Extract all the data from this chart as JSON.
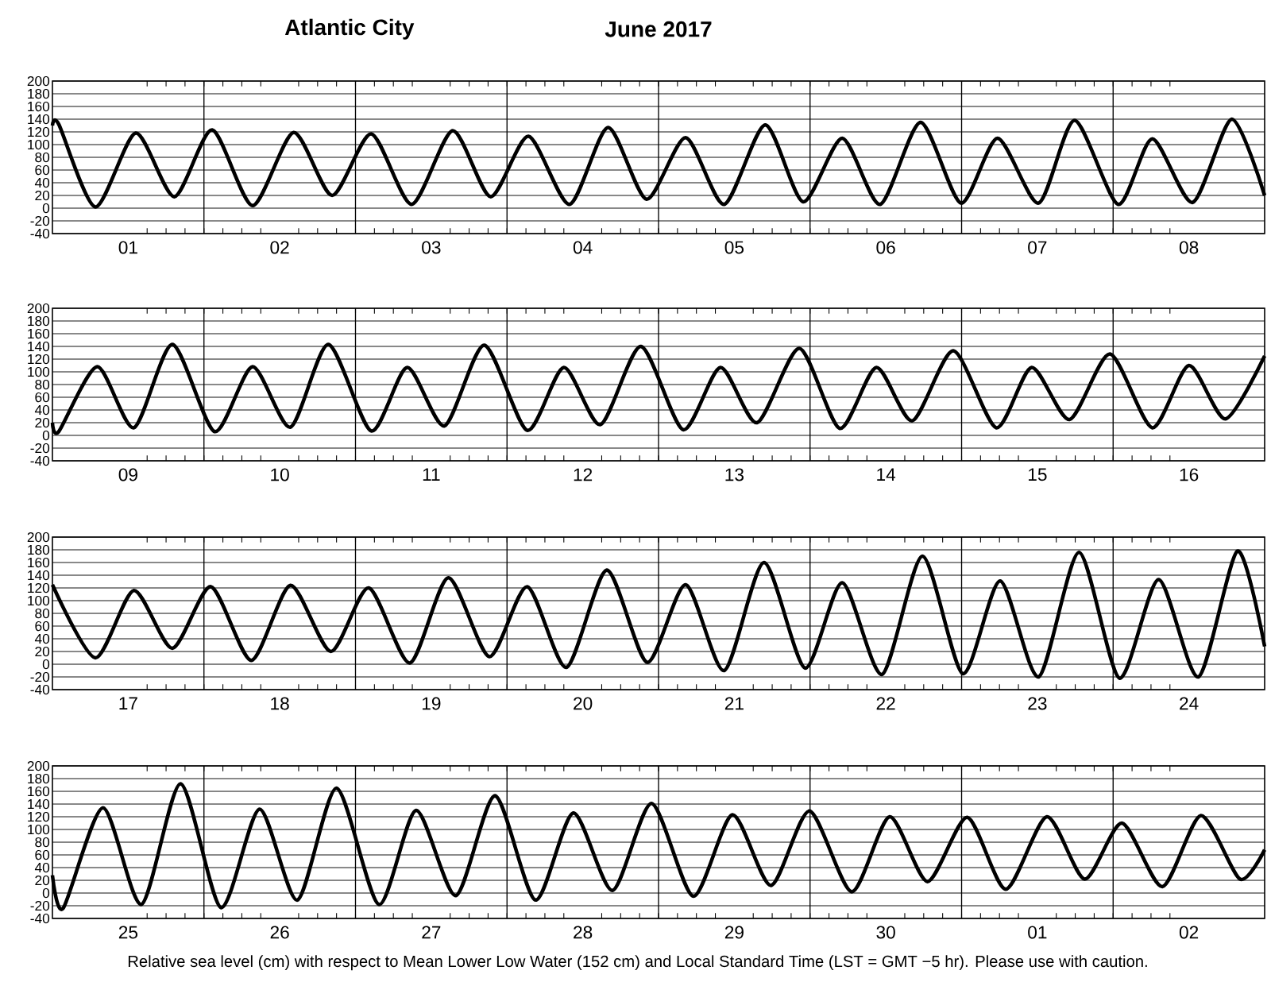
{
  "chart_data": [
    {
      "type": "line",
      "title": "Atlantic City",
      "subtitle": "June  2017",
      "xlim": [
        "2017-06-01T00:00",
        "2017-06-09T00:00"
      ],
      "ylim": [
        -40,
        200
      ],
      "xticks": [
        {
          "value": "2017-06-01T12:00",
          "label": "01"
        },
        {
          "value": "2017-06-02T12:00",
          "label": "02"
        },
        {
          "value": "2017-06-03T12:00",
          "label": "03"
        },
        {
          "value": "2017-06-04T12:00",
          "label": "04"
        },
        {
          "value": "2017-06-05T12:00",
          "label": "05"
        },
        {
          "value": "2017-06-06T12:00",
          "label": "06"
        },
        {
          "value": "2017-06-07T12:00",
          "label": "07"
        },
        {
          "value": "2017-06-08T12:00",
          "label": "08"
        }
      ],
      "yticks": [
        -40,
        -20,
        0,
        20,
        40,
        60,
        80,
        100,
        120,
        140,
        160,
        180,
        200
      ],
      "grid": "y",
      "ref_lines": [
        {
          "axis": "x",
          "value": "2017-06-02T00:00"
        },
        {
          "axis": "x",
          "value": "2017-06-03T00:00"
        },
        {
          "axis": "x",
          "value": "2017-06-04T00:00"
        },
        {
          "axis": "x",
          "value": "2017-06-05T00:00"
        },
        {
          "axis": "x",
          "value": "2017-06-06T00:00"
        },
        {
          "axis": "x",
          "value": "2017-06-07T00:00"
        },
        {
          "axis": "x",
          "value": "2017-06-08T00:00"
        }
      ],
      "series": [
        {
          "color": "#000000",
          "x": [
            "2017-06-01T00:00",
            "2017-06-01T01:00",
            "2017-06-01T06:48",
            "2017-06-01T13:12",
            "2017-06-01T19:18",
            "2017-06-02T01:18",
            "2017-06-02T07:42",
            "2017-06-02T14:12",
            "2017-06-02T20:18",
            "2017-06-03T02:30",
            "2017-06-03T08:54",
            "2017-06-03T15:24",
            "2017-06-03T21:24",
            "2017-06-04T03:24",
            "2017-06-04T09:54",
            "2017-06-04T16:00",
            "2017-06-04T22:06",
            "2017-06-05T04:18",
            "2017-06-05T10:24",
            "2017-06-05T16:54",
            "2017-06-05T22:54",
            "2017-06-06T05:06",
            "2017-06-06T11:06",
            "2017-06-06T17:30",
            "2017-06-06T23:54",
            "2017-06-07T05:42",
            "2017-06-07T12:12",
            "2017-06-07T17:54",
            "2017-06-08T00:48",
            "2017-06-08T06:12",
            "2017-06-08T12:36",
            "2017-06-08T18:48",
            "2017-06-09T00:00"
          ],
          "values": [
            130,
            132,
            2,
            118,
            18,
            123,
            4,
            119,
            20,
            117,
            6,
            122,
            18,
            113,
            6,
            127,
            14,
            111,
            6,
            131,
            10,
            110,
            6,
            135,
            8,
            110,
            8,
            138,
            6,
            109,
            9,
            140,
            20
          ]
        }
      ]
    },
    {
      "type": "line",
      "xlim": [
        "2017-06-09T00:00",
        "2017-06-17T00:00"
      ],
      "ylim": [
        -40,
        200
      ],
      "xticks": [
        {
          "value": "2017-06-09T12:00",
          "label": "09"
        },
        {
          "value": "2017-06-10T12:00",
          "label": "10"
        },
        {
          "value": "2017-06-11T12:00",
          "label": "11"
        },
        {
          "value": "2017-06-12T12:00",
          "label": "12"
        },
        {
          "value": "2017-06-13T12:00",
          "label": "13"
        },
        {
          "value": "2017-06-14T12:00",
          "label": "14"
        },
        {
          "value": "2017-06-15T12:00",
          "label": "15"
        },
        {
          "value": "2017-06-16T12:00",
          "label": "16"
        }
      ],
      "yticks": [
        -40,
        -20,
        0,
        20,
        40,
        60,
        80,
        100,
        120,
        140,
        160,
        180,
        200
      ],
      "grid": "y",
      "ref_lines": [
        {
          "axis": "x",
          "value": "2017-06-10T00:00"
        },
        {
          "axis": "x",
          "value": "2017-06-11T00:00"
        },
        {
          "axis": "x",
          "value": "2017-06-12T00:00"
        },
        {
          "axis": "x",
          "value": "2017-06-13T00:00"
        },
        {
          "axis": "x",
          "value": "2017-06-14T00:00"
        },
        {
          "axis": "x",
          "value": "2017-06-15T00:00"
        },
        {
          "axis": "x",
          "value": "2017-06-16T00:00"
        }
      ],
      "series": [
        {
          "color": "#000000",
          "x": [
            "2017-06-09T00:00",
            "2017-06-09T01:00",
            "2017-06-09T07:06",
            "2017-06-09T12:54",
            "2017-06-09T19:00",
            "2017-06-10T01:42",
            "2017-06-10T07:42",
            "2017-06-10T13:42",
            "2017-06-10T19:42",
            "2017-06-11T02:30",
            "2017-06-11T08:12",
            "2017-06-11T14:06",
            "2017-06-11T20:24",
            "2017-06-12T03:12",
            "2017-06-12T09:00",
            "2017-06-12T14:48",
            "2017-06-12T21:12",
            "2017-06-13T03:54",
            "2017-06-13T09:48",
            "2017-06-13T15:36",
            "2017-06-13T22:18",
            "2017-06-14T04:42",
            "2017-06-14T10:30",
            "2017-06-14T16:12",
            "2017-06-14T22:42",
            "2017-06-15T05:30",
            "2017-06-15T11:06",
            "2017-06-15T17:06",
            "2017-06-15T23:30",
            "2017-06-16T06:12",
            "2017-06-16T12:00",
            "2017-06-16T17:48",
            "2017-06-17T00:00"
          ],
          "values": [
            20,
            6,
            108,
            12,
            143,
            6,
            108,
            13,
            143,
            7,
            107,
            15,
            142,
            8,
            107,
            17,
            140,
            9,
            107,
            20,
            137,
            11,
            107,
            23,
            133,
            12,
            107,
            25,
            128,
            12,
            110,
            26,
            125
          ]
        }
      ]
    },
    {
      "type": "line",
      "xlim": [
        "2017-06-17T00:00",
        "2017-06-25T00:00"
      ],
      "ylim": [
        -40,
        200
      ],
      "xticks": [
        {
          "value": "2017-06-17T12:00",
          "label": "17"
        },
        {
          "value": "2017-06-18T12:00",
          "label": "18"
        },
        {
          "value": "2017-06-19T12:00",
          "label": "19"
        },
        {
          "value": "2017-06-20T12:00",
          "label": "20"
        },
        {
          "value": "2017-06-21T12:00",
          "label": "21"
        },
        {
          "value": "2017-06-22T12:00",
          "label": "22"
        },
        {
          "value": "2017-06-23T12:00",
          "label": "23"
        },
        {
          "value": "2017-06-24T12:00",
          "label": "24"
        }
      ],
      "yticks": [
        -40,
        -20,
        0,
        20,
        40,
        60,
        80,
        100,
        120,
        140,
        160,
        180,
        200
      ],
      "grid": "y",
      "ref_lines": [
        {
          "axis": "x",
          "value": "2017-06-18T00:00"
        },
        {
          "axis": "x",
          "value": "2017-06-19T00:00"
        },
        {
          "axis": "x",
          "value": "2017-06-20T00:00"
        },
        {
          "axis": "x",
          "value": "2017-06-21T00:00"
        },
        {
          "axis": "x",
          "value": "2017-06-22T00:00"
        },
        {
          "axis": "x",
          "value": "2017-06-23T00:00"
        },
        {
          "axis": "x",
          "value": "2017-06-24T00:00"
        }
      ],
      "series": [
        {
          "color": "#000000",
          "x": [
            "2017-06-17T00:00",
            "2017-06-17T06:48",
            "2017-06-17T12:54",
            "2017-06-17T19:00",
            "2017-06-18T01:06",
            "2017-06-18T07:30",
            "2017-06-18T13:42",
            "2017-06-18T20:06",
            "2017-06-19T02:06",
            "2017-06-19T08:36",
            "2017-06-19T14:42",
            "2017-06-19T21:12",
            "2017-06-20T03:12",
            "2017-06-20T09:24",
            "2017-06-20T15:48",
            "2017-06-20T22:12",
            "2017-06-21T04:18",
            "2017-06-21T10:24",
            "2017-06-21T16:42",
            "2017-06-21T23:12",
            "2017-06-22T05:06",
            "2017-06-22T11:24",
            "2017-06-22T17:48",
            "2017-06-23T00:12",
            "2017-06-23T06:06",
            "2017-06-23T12:12",
            "2017-06-23T18:36",
            "2017-06-24T01:00",
            "2017-06-24T07:12",
            "2017-06-24T13:30",
            "2017-06-24T19:42",
            "2017-06-25T00:00"
          ],
          "values": [
            125,
            10,
            116,
            25,
            122,
            6,
            124,
            20,
            120,
            2,
            136,
            12,
            122,
            -5,
            148,
            3,
            125,
            -10,
            160,
            -6,
            128,
            -16,
            170,
            -15,
            131,
            -20,
            176,
            -22,
            133,
            -20,
            178,
            28
          ]
        }
      ]
    },
    {
      "type": "line",
      "xlim": [
        "2017-06-25T00:00",
        "2017-07-03T00:00"
      ],
      "ylim": [
        -40,
        200
      ],
      "xticks": [
        {
          "value": "2017-06-25T12:00",
          "label": "25"
        },
        {
          "value": "2017-06-26T12:00",
          "label": "26"
        },
        {
          "value": "2017-06-27T12:00",
          "label": "27"
        },
        {
          "value": "2017-06-28T12:00",
          "label": "28"
        },
        {
          "value": "2017-06-29T12:00",
          "label": "29"
        },
        {
          "value": "2017-06-30T12:00",
          "label": "30"
        },
        {
          "value": "2017-07-01T12:00",
          "label": "01"
        },
        {
          "value": "2017-07-02T12:00",
          "label": "02"
        }
      ],
      "yticks": [
        -40,
        -20,
        0,
        20,
        40,
        60,
        80,
        100,
        120,
        140,
        160,
        180,
        200
      ],
      "grid": "y",
      "ref_lines": [
        {
          "axis": "x",
          "value": "2017-06-26T00:00"
        },
        {
          "axis": "x",
          "value": "2017-06-27T00:00"
        },
        {
          "axis": "x",
          "value": "2017-06-28T00:00"
        },
        {
          "axis": "x",
          "value": "2017-06-29T00:00"
        },
        {
          "axis": "x",
          "value": "2017-06-30T00:00"
        },
        {
          "axis": "x",
          "value": "2017-07-01T00:00"
        },
        {
          "axis": "x",
          "value": "2017-07-02T00:00"
        }
      ],
      "annotations": [
        "Relative sea level (cm) with respect to Mean Lower Low Water (152 cm) and Local Standard Time (LST = GMT −5 hr). Please use with caution."
      ],
      "series": [
        {
          "color": "#000000",
          "x": [
            "2017-06-25T00:00",
            "2017-06-25T01:42",
            "2017-06-25T08:00",
            "2017-06-25T14:06",
            "2017-06-25T20:18",
            "2017-06-26T02:42",
            "2017-06-26T08:48",
            "2017-06-26T14:48",
            "2017-06-26T21:00",
            "2017-06-27T03:42",
            "2017-06-27T09:36",
            "2017-06-27T15:54",
            "2017-06-27T22:06",
            "2017-06-28T04:30",
            "2017-06-28T10:30",
            "2017-06-28T16:42",
            "2017-06-28T22:54",
            "2017-06-29T05:30",
            "2017-06-29T11:42",
            "2017-06-29T17:48",
            "2017-06-29T23:54",
            "2017-06-30T06:36",
            "2017-06-30T12:36",
            "2017-06-30T18:36",
            "2017-07-01T00:54",
            "2017-07-01T07:00",
            "2017-07-01T13:30",
            "2017-07-01T19:30",
            "2017-07-02T01:24",
            "2017-07-02T07:48",
            "2017-07-02T13:54",
            "2017-07-02T20:06",
            "2017-07-03T00:00"
          ],
          "values": [
            28,
            -24,
            134,
            -18,
            172,
            -23,
            132,
            -11,
            165,
            -18,
            130,
            -4,
            153,
            -11,
            126,
            4,
            141,
            -5,
            123,
            12,
            129,
            2,
            120,
            18,
            119,
            6,
            120,
            22,
            110,
            10,
            122,
            22,
            68
          ]
        }
      ]
    }
  ]
}
